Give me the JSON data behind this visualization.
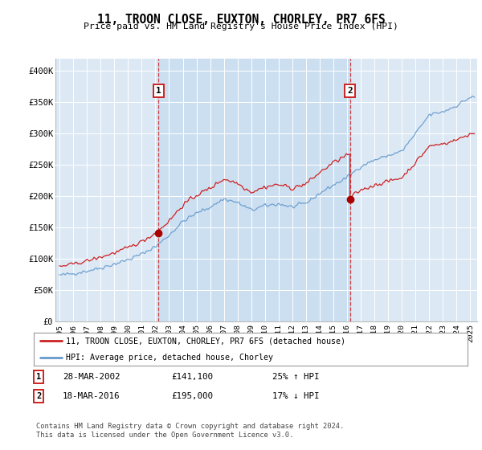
{
  "title": "11, TROON CLOSE, EUXTON, CHORLEY, PR7 6FS",
  "subtitle": "Price paid vs. HM Land Registry's House Price Index (HPI)",
  "bg_color": "#dce9f5",
  "red_line_color": "#cc2222",
  "blue_line_color": "#6699cc",
  "fill_color": "#c8d8ee",
  "red_line_label": "11, TROON CLOSE, EUXTON, CHORLEY, PR7 6FS (detached house)",
  "blue_line_label": "HPI: Average price, detached house, Chorley",
  "footer": "Contains HM Land Registry data © Crown copyright and database right 2024.\nThis data is licensed under the Open Government Licence v3.0.",
  "ann1": {
    "num": "1",
    "date": "28-MAR-2002",
    "price": "£141,100",
    "hpi": "25% ↑ HPI",
    "x_year": 2002.23,
    "y_val": 141100
  },
  "ann2": {
    "num": "2",
    "date": "18-MAR-2016",
    "price": "£195,000",
    "hpi": "17% ↓ HPI",
    "x_year": 2016.21,
    "y_val": 195000
  },
  "ylim": [
    0,
    420000
  ],
  "xlim_start": 1994.7,
  "xlim_end": 2025.5,
  "yticks": [
    0,
    50000,
    100000,
    150000,
    200000,
    250000,
    300000,
    350000,
    400000
  ],
  "ytick_labels": [
    "£0",
    "£50K",
    "£100K",
    "£150K",
    "£200K",
    "£250K",
    "£300K",
    "£350K",
    "£400K"
  ],
  "xticks": [
    1995,
    1996,
    1997,
    1998,
    1999,
    2000,
    2001,
    2002,
    2003,
    2004,
    2005,
    2006,
    2007,
    2008,
    2009,
    2010,
    2011,
    2012,
    2013,
    2014,
    2015,
    2016,
    2017,
    2018,
    2019,
    2020,
    2021,
    2022,
    2023,
    2024,
    2025
  ]
}
